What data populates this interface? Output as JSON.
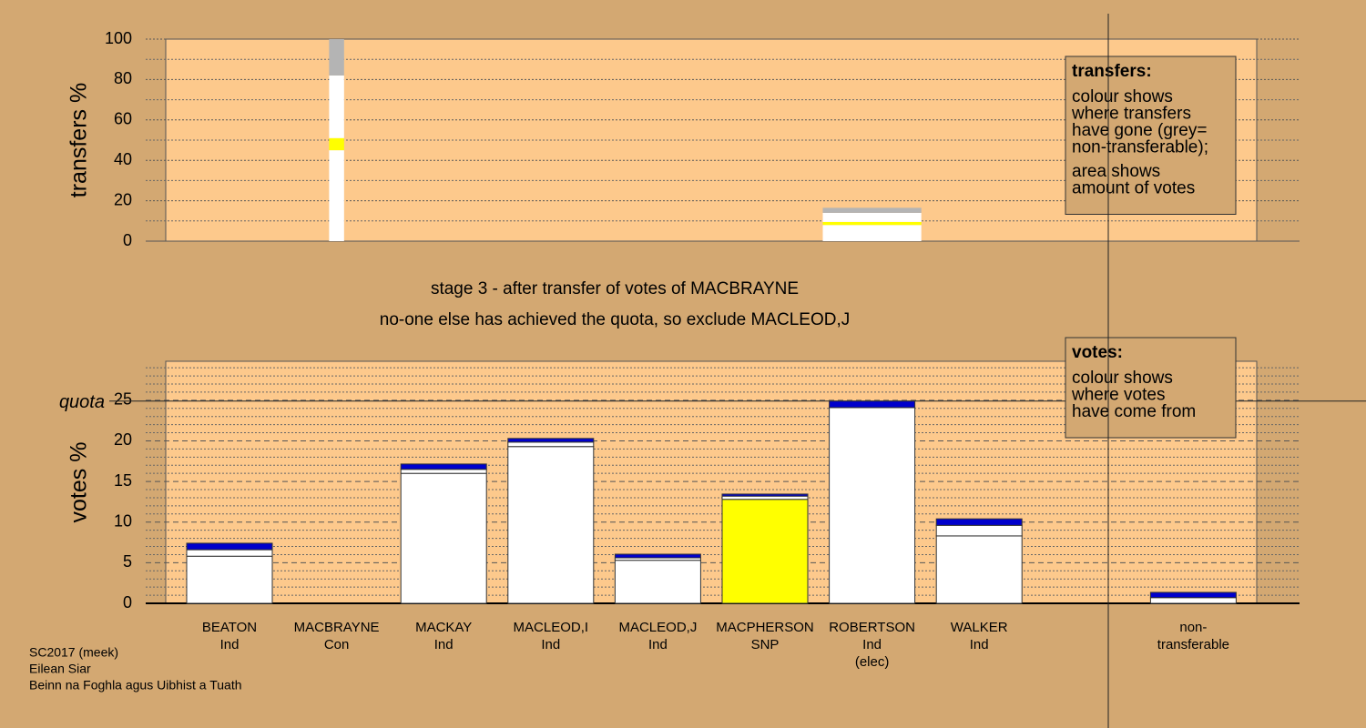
{
  "header": [
    "stage 3 - after transfer of votes of MACBRAYNE",
    "no-one else has achieved the quota, so exclude MACLEOD,J"
  ],
  "footer": [
    "SC2017 (meek)",
    "Eilean Siar",
    "Beinn na Foghla agus Uibhist a Tuath"
  ],
  "chart_data": [
    {
      "type": "bar",
      "y_label": "transfers %",
      "ylim": [
        0,
        100
      ],
      "yticks": [
        0,
        20,
        40,
        60,
        80,
        100
      ],
      "grid": true,
      "widths": [
        null,
        0.14,
        null,
        null,
        null,
        null,
        0.92,
        null,
        null,
        null
      ],
      "series": [
        {
          "color": "#ffffff",
          "values": [
            null,
            45,
            null,
            null,
            null,
            null,
            8,
            null,
            null,
            null
          ]
        },
        {
          "color": "#ffff00",
          "values": [
            null,
            6,
            null,
            null,
            null,
            null,
            1.5,
            null,
            null,
            null
          ]
        },
        {
          "color": "#ffffff",
          "values": [
            null,
            31,
            null,
            null,
            null,
            null,
            4.5,
            null,
            null,
            null
          ]
        },
        {
          "color": "#b4b4b4",
          "values": [
            null,
            18,
            null,
            null,
            null,
            null,
            2.5,
            null,
            null,
            null
          ]
        }
      ],
      "legend_box": {
        "title": "transfers:",
        "paragraphs": [
          [
            "colour shows",
            "where transfers",
            "have gone (grey=",
            "non-transferable);"
          ],
          [
            "area shows",
            "amount of votes"
          ]
        ]
      }
    },
    {
      "type": "bar",
      "y_label": "votes %",
      "ylim": [
        0,
        29.8
      ],
      "yticks": [
        0,
        5,
        10,
        15,
        20,
        25
      ],
      "grid": true,
      "quota": {
        "label": "quota",
        "value": 24.9
      },
      "categories": [
        [
          "BEATON",
          "Ind"
        ],
        [
          "MACBRAYNE",
          "Con"
        ],
        [
          "MACKAY",
          "Ind"
        ],
        [
          "MACLEOD,I",
          "Ind"
        ],
        [
          "MACLEOD,J",
          "Ind"
        ],
        [
          "MACPHERSON",
          "SNP"
        ],
        [
          "ROBERTSON",
          "Ind",
          "(elec)"
        ],
        [
          "WALKER",
          "Ind"
        ],
        null,
        [
          "non-",
          "transferable"
        ]
      ],
      "series": [
        {
          "color": "#ffffff",
          "values": [
            5.8,
            0,
            16.0,
            19.3,
            5.3,
            null,
            24.1,
            8.3,
            null,
            0.7
          ]
        },
        {
          "color": "#ffff00",
          "values": [
            null,
            null,
            null,
            null,
            null,
            12.8,
            null,
            null,
            null,
            null
          ]
        },
        {
          "color": "#ffffff",
          "values": [
            0.8,
            0,
            0.5,
            0.55,
            0.3,
            0.4,
            0,
            1.3,
            null,
            0
          ]
        },
        {
          "color": "#0000cc",
          "values": [
            0.8,
            0,
            0.65,
            0.45,
            0.45,
            0.25,
            0.8,
            0.8,
            null,
            0.65
          ]
        }
      ],
      "legend_box": {
        "title": "votes:",
        "paragraphs": [
          [
            "colour shows",
            "where votes",
            "have come from"
          ]
        ]
      }
    }
  ]
}
